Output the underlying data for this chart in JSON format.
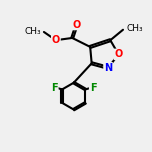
{
  "bg_color": "#f0f0f0",
  "bond_color": "#000000",
  "atom_colors": {
    "O": "#ff0000",
    "N": "#0000ff",
    "F": "#008800",
    "C": "#000000"
  },
  "bond_width": 1.5,
  "figsize": [
    1.52,
    1.52
  ],
  "dpi": 100
}
